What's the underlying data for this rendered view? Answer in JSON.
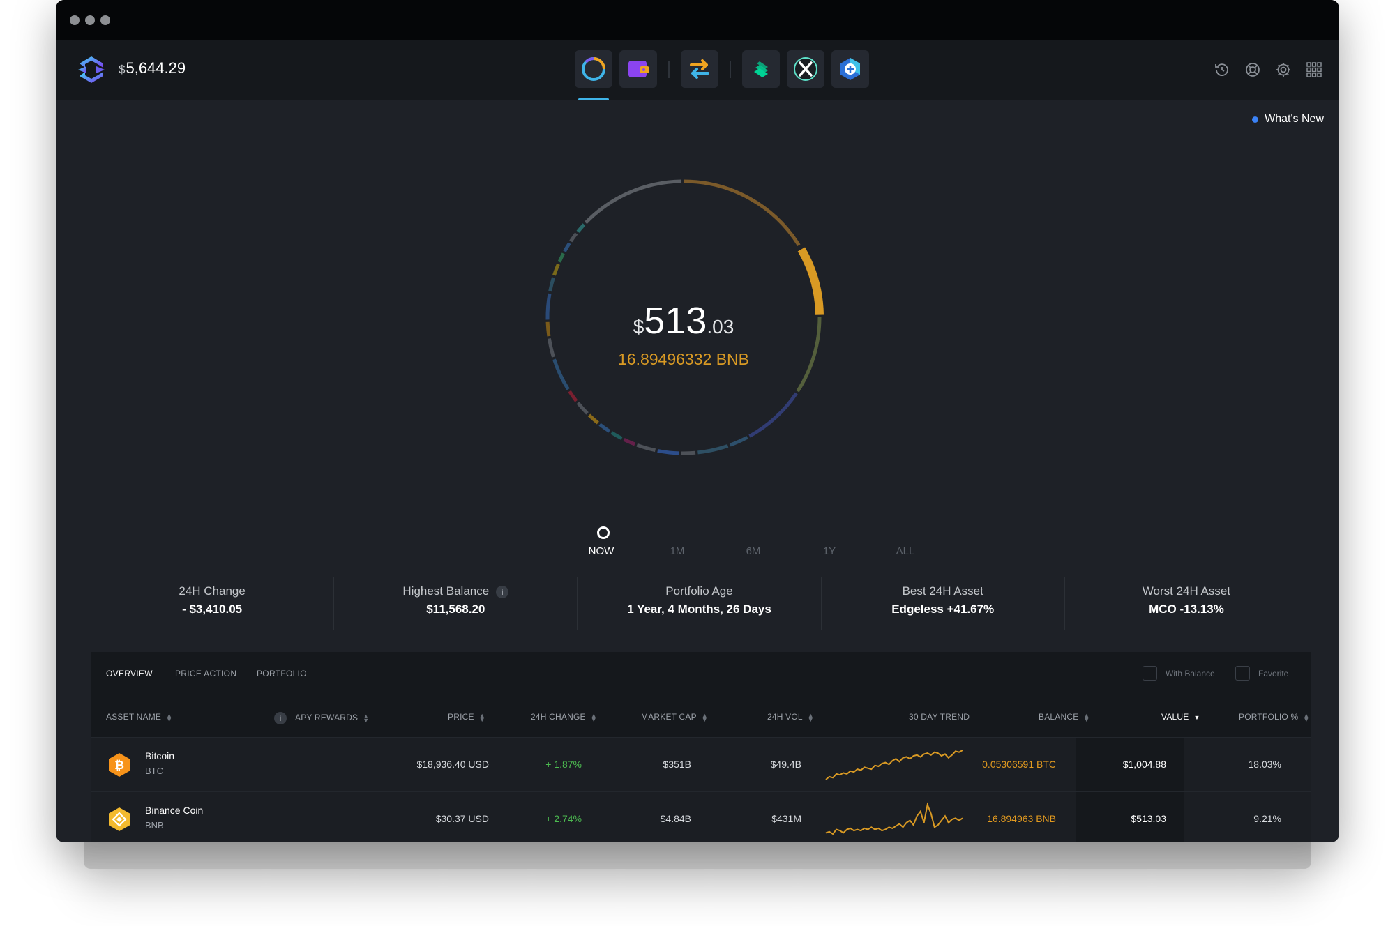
{
  "header": {
    "total_currency": "$",
    "total_value": "5,644.29",
    "whats_new": "What's New"
  },
  "nav_icons": [
    "portfolio-icon",
    "wallet-icon",
    "exchange-icon",
    "compound-icon",
    "xchange-icon",
    "app-add-icon"
  ],
  "right_icons": [
    "history-icon",
    "support-icon",
    "settings-icon",
    "apps-grid-icon"
  ],
  "summary": {
    "currency_symbol": "$",
    "value_int": "513",
    "value_dec": ".03",
    "balance": "16.89496332 BNB"
  },
  "timeline": [
    "NOW",
    "1M",
    "6M",
    "1Y",
    "ALL"
  ],
  "stats": [
    {
      "label": "24H Change",
      "value": "- $3,410.05"
    },
    {
      "label": "Highest Balance",
      "value": "$11,568.20"
    },
    {
      "label": "Portfolio Age",
      "value": "1 Year, 4 Months, 26 Days"
    },
    {
      "label": "Best 24H Asset",
      "value": "Edgeless +41.67%"
    },
    {
      "label": "Worst 24H Asset",
      "value": "MCO -13.13%"
    }
  ],
  "table": {
    "tabs": [
      "OVERVIEW",
      "PRICE ACTION",
      "PORTFOLIO"
    ],
    "filters": [
      "With Balance",
      "Favorite"
    ],
    "columns": [
      "ASSET NAME",
      "APY REWARDS",
      "PRICE",
      "24H CHANGE",
      "MARKET CAP",
      "24H VOL",
      "30 DAY TREND",
      "BALANCE",
      "VALUE",
      "PORTFOLIO %"
    ],
    "rows": [
      {
        "name": "Bitcoin",
        "symbol": "BTC",
        "price": "$18,936.40 USD",
        "change": "+ 1.87%",
        "market_cap": "$351B",
        "volume": "$49.4B",
        "balance": "0.05306591 BTC",
        "value": "$1,004.88",
        "portfolio": "18.03%",
        "trend": [
          2,
          5,
          4,
          8,
          7,
          9,
          8,
          11,
          10,
          13,
          12,
          15,
          14,
          13,
          17,
          16,
          19,
          20,
          18,
          22,
          24,
          21,
          25,
          26,
          24,
          27,
          28,
          26,
          29,
          30,
          28,
          31,
          30,
          27,
          29,
          25,
          28,
          32,
          31,
          33
        ]
      },
      {
        "name": "Binance Coin",
        "symbol": "BNB",
        "price": "$30.37 USD",
        "change": "+ 2.74%",
        "market_cap": "$4.84B",
        "volume": "$431M",
        "balance": "16.894963 BNB",
        "value": "$513.03",
        "portfolio": "9.21%",
        "trend": [
          3,
          4,
          2,
          6,
          5,
          3,
          6,
          7,
          5,
          6,
          5,
          7,
          6,
          8,
          6,
          7,
          5,
          6,
          8,
          7,
          9,
          11,
          8,
          12,
          14,
          10,
          18,
          22,
          12,
          28,
          20,
          8,
          10,
          14,
          18,
          12,
          15,
          16,
          14,
          16
        ]
      }
    ]
  },
  "colors": {
    "accent_blue": "#3fb4e8",
    "gold": "#d99a24",
    "positive": "#4cbb50"
  }
}
